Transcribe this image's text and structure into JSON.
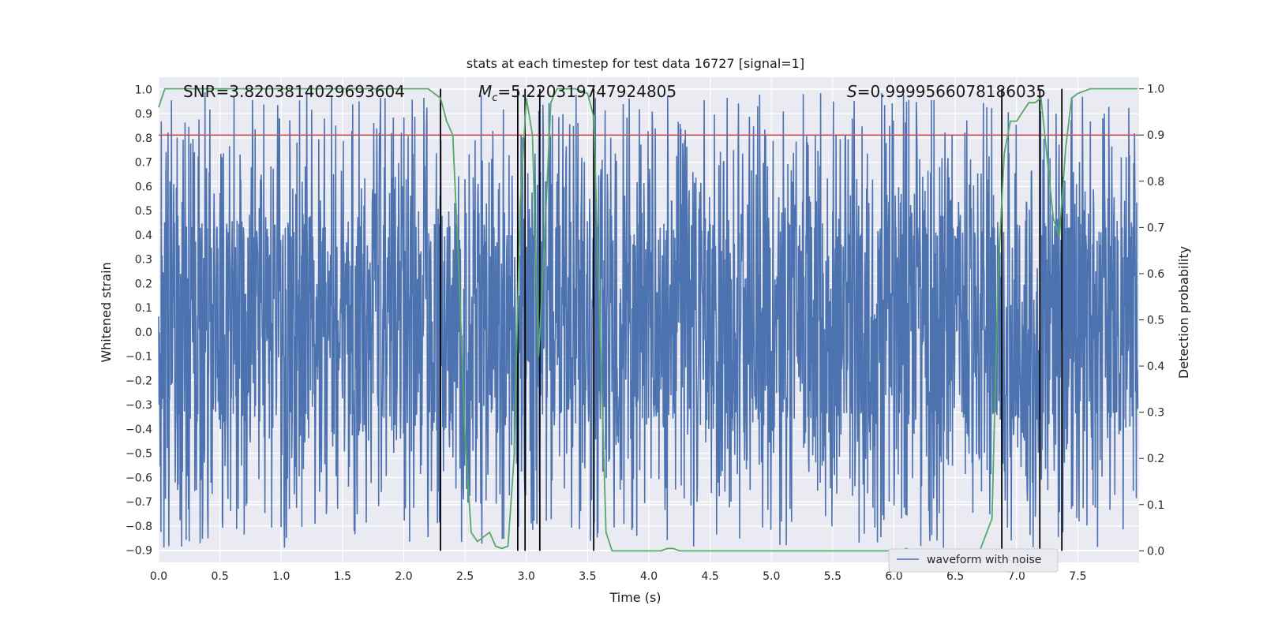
{
  "chart_data": {
    "type": "line",
    "title": "stats at each timestep for test data 16727 [signal=1]",
    "xlabel": "Time (s)",
    "ylabel": "Whitened strain",
    "y2label": "Detection probability",
    "xlim": [
      0.0,
      8.0
    ],
    "ylim": [
      -0.95,
      1.05
    ],
    "y2lim": [
      -0.025,
      1.025
    ],
    "xticks": [
      "0.0",
      "0.5",
      "1.0",
      "1.5",
      "2.0",
      "2.5",
      "3.0",
      "3.5",
      "4.0",
      "4.5",
      "5.0",
      "5.5",
      "6.0",
      "6.5",
      "7.0",
      "7.5"
    ],
    "yticks": [
      "1.0",
      "0.9",
      "0.8",
      "0.7",
      "0.6",
      "0.5",
      "0.4",
      "0.3",
      "0.2",
      "0.1",
      "0.0",
      "−0.1",
      "−0.2",
      "−0.3",
      "−0.4",
      "−0.5",
      "−0.6",
      "−0.7",
      "−0.8",
      "−0.9"
    ],
    "y2ticks": [
      "1.0",
      "0.9",
      "0.8",
      "0.7",
      "0.6",
      "0.5",
      "0.4",
      "0.3",
      "0.2",
      "0.1",
      "0.0"
    ],
    "grid": true,
    "legend_position": "lower-right",
    "annotations": {
      "snr": "SNR=3.8203814029693604",
      "mc": "=5.220319747924805",
      "mc_symbol": "M",
      "mc_sub": "c",
      "s": "=0.9999566078186035",
      "s_symbol": "S"
    },
    "series": [
      {
        "name": "waveform with noise",
        "kind": "noisy waveform",
        "color": "#4c72b0",
        "envelope": {
          "core_range": [
            -0.33,
            0.43
          ],
          "peak_max": 1.0,
          "trough_min": -0.89
        }
      },
      {
        "kind": "detection probability (right axis)",
        "color": "#55a868",
        "x": [
          0.0,
          0.05,
          0.1,
          0.5,
          1.0,
          1.5,
          2.0,
          2.2,
          2.3,
          2.35,
          2.4,
          2.45,
          2.5,
          2.55,
          2.6,
          2.65,
          2.7,
          2.75,
          2.8,
          2.85,
          2.9,
          2.95,
          3.0,
          3.05,
          3.1,
          3.15,
          3.2,
          3.25,
          3.3,
          3.4,
          3.5,
          3.55,
          3.6,
          3.65,
          3.7,
          3.75,
          3.8,
          3.9,
          4.0,
          4.1,
          4.15,
          4.2,
          4.25,
          4.3,
          4.5,
          5.0,
          5.5,
          5.8,
          6.0,
          6.05,
          6.1,
          6.15,
          6.2,
          6.5,
          6.7,
          6.8,
          6.85,
          6.9,
          6.95,
          7.0,
          7.05,
          7.1,
          7.15,
          7.2,
          7.25,
          7.3,
          7.35,
          7.4,
          7.45,
          7.5,
          7.6,
          7.7,
          7.8,
          7.99
        ],
        "values": [
          0.96,
          1.0,
          1.0,
          1.0,
          1.0,
          1.0,
          1.0,
          1.0,
          0.98,
          0.93,
          0.9,
          0.6,
          0.25,
          0.04,
          0.02,
          0.03,
          0.04,
          0.01,
          0.005,
          0.01,
          0.2,
          0.75,
          0.98,
          0.9,
          0.42,
          0.68,
          0.97,
          1.0,
          1.0,
          1.0,
          0.99,
          0.94,
          0.5,
          0.04,
          0.0,
          0.0,
          0.0,
          0.0,
          0.0,
          0.0,
          0.005,
          0.005,
          0.0,
          0.0,
          0.0,
          0.0,
          0.0,
          0.0,
          0.0,
          0.0,
          0.005,
          0.0,
          0.0,
          0.0,
          0.0,
          0.07,
          0.6,
          0.86,
          0.93,
          0.93,
          0.95,
          0.97,
          0.97,
          0.98,
          0.85,
          0.72,
          0.68,
          0.87,
          0.98,
          0.99,
          1.0,
          1.0,
          1.0,
          1.0
        ]
      },
      {
        "kind": "threshold line",
        "color": "#c44e52",
        "value": 0.9
      },
      {
        "kind": "event markers",
        "color": "#000000",
        "x": [
          2.3,
          2.93,
          2.99,
          3.11,
          3.55,
          6.88,
          7.19,
          7.37
        ]
      }
    ]
  }
}
